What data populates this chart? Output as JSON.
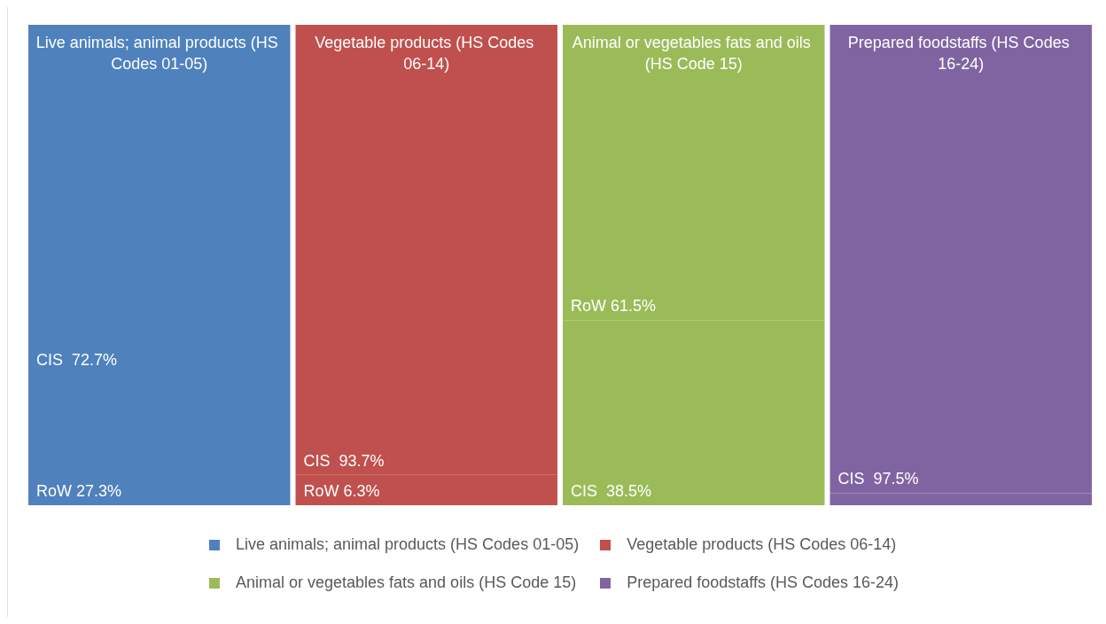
{
  "chart_data": {
    "type": "bar",
    "stacked": true,
    "categories": [
      "Live animals; animal products (HS Codes 01-05)",
      "Vegetable products (HS Codes 06-14)",
      "Animal or vegetables fats and oils (HS Code 15)",
      "Prepared foodstaffs (HS Codes 16-24)"
    ],
    "colors": [
      "#4f81bd",
      "#c0504d",
      "#9bbb59",
      "#8064a2"
    ],
    "series": [
      {
        "colors": [
          "#4f81bd",
          "#c0504d",
          "#9bbb59",
          "#8064a2"
        ],
        "values": [
          27.3,
          6.3,
          38.5,
          2.5
        ],
        "value_labels": [
          "RoW 27.3%",
          "RoW 6.3%",
          "CIS  38.5%",
          null
        ]
      },
      {
        "colors": [
          "#4f81bd",
          "#c0504d",
          "#9bbb59",
          "#8064a2"
        ],
        "values": [
          72.7,
          93.7,
          61.5,
          97.5
        ],
        "value_labels": [
          "CIS  72.7%",
          "CIS  93.7%",
          "RoW 61.5%",
          "CIS  97.5%"
        ]
      }
    ]
  }
}
